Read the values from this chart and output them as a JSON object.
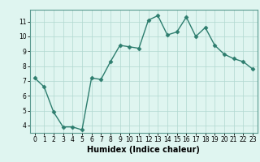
{
  "x": [
    0,
    1,
    2,
    3,
    4,
    5,
    6,
    7,
    8,
    9,
    10,
    11,
    12,
    13,
    14,
    15,
    16,
    17,
    18,
    19,
    20,
    21,
    22,
    23
  ],
  "y": [
    7.2,
    6.6,
    4.9,
    3.9,
    3.9,
    3.7,
    7.2,
    7.1,
    8.3,
    9.4,
    9.3,
    9.2,
    11.1,
    11.4,
    10.1,
    10.3,
    11.3,
    10.0,
    10.6,
    9.4,
    8.8,
    8.5,
    8.3,
    7.8
  ],
  "line_color": "#2d7d6e",
  "marker": "D",
  "marker_size": 2.5,
  "bg_color": "#dff5f0",
  "grid_color": "#b0d8d0",
  "xlabel": "Humidex (Indice chaleur)",
  "ylim": [
    3.5,
    11.8
  ],
  "xlim": [
    -0.5,
    23.5
  ],
  "yticks": [
    4,
    5,
    6,
    7,
    8,
    9,
    10,
    11
  ],
  "xticks": [
    0,
    1,
    2,
    3,
    4,
    5,
    6,
    7,
    8,
    9,
    10,
    11,
    12,
    13,
    14,
    15,
    16,
    17,
    18,
    19,
    20,
    21,
    22,
    23
  ],
  "tick_label_fontsize": 5.5,
  "xlabel_fontsize": 7,
  "spine_color": "#5a9a90",
  "axis_bg": "#dff5f0"
}
